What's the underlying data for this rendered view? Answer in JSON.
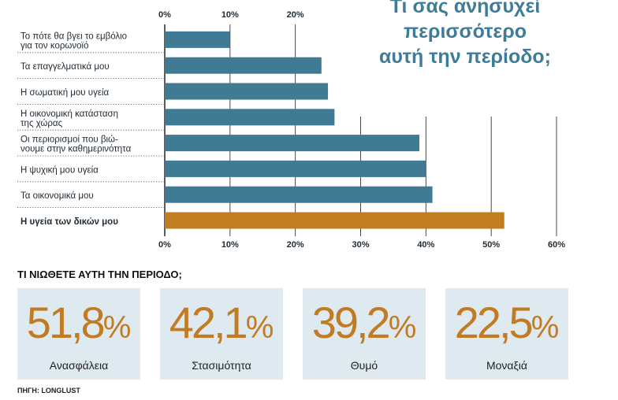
{
  "chart_data": {
    "type": "bar",
    "orientation": "horizontal",
    "title": [
      "Τι σας ανησυχεί",
      "περισσότερο",
      "αυτή την περίοδο;"
    ],
    "categories": [
      [
        "Το πότε θα βγει το εμβόλιο",
        "για τον κορωνοϊό"
      ],
      [
        "Τα επαγγελματικά μου"
      ],
      [
        "Η σωματική μου υγεία"
      ],
      [
        "Η οικονομική κατάσταση",
        "της χώρας"
      ],
      [
        "Οι περιορισμοί που βιώ-",
        "νουμε στην καθημερινότητα"
      ],
      [
        "Η ψυχική μου υγεία"
      ],
      [
        "Τα οικονομικά μου"
      ],
      [
        "Η υγεία των δικών μου"
      ]
    ],
    "values": [
      10,
      24,
      25,
      26,
      39,
      40,
      41,
      52
    ],
    "highlight_index": 7,
    "xlim": [
      0,
      60
    ],
    "top_ticks": [
      "0%",
      "10%",
      "20%"
    ],
    "bottom_ticks": [
      "0%",
      "10%",
      "20%",
      "30%",
      "40%",
      "50%",
      "60%"
    ],
    "colors": {
      "bar": "#417b93",
      "highlight": "#c27c22",
      "grid": "#333333"
    }
  },
  "feelings": {
    "title": "ΤΙ ΝΙΩΘΕΤΕ ΑΥΤΗ ΤΗΝ ΠΕΡΙΟΔΟ;",
    "items": [
      {
        "number": "51,8",
        "unit": "%",
        "label": "Ανασφάλεια"
      },
      {
        "number": "42,1",
        "unit": "%",
        "label": "Στασιμότητα"
      },
      {
        "number": "39,2",
        "unit": "%",
        "label": "Θυμό"
      },
      {
        "number": "22,5",
        "unit": "%",
        "label": "Μοναξιά"
      }
    ]
  },
  "source": "ΠΗΓΗ: LONGLUST"
}
